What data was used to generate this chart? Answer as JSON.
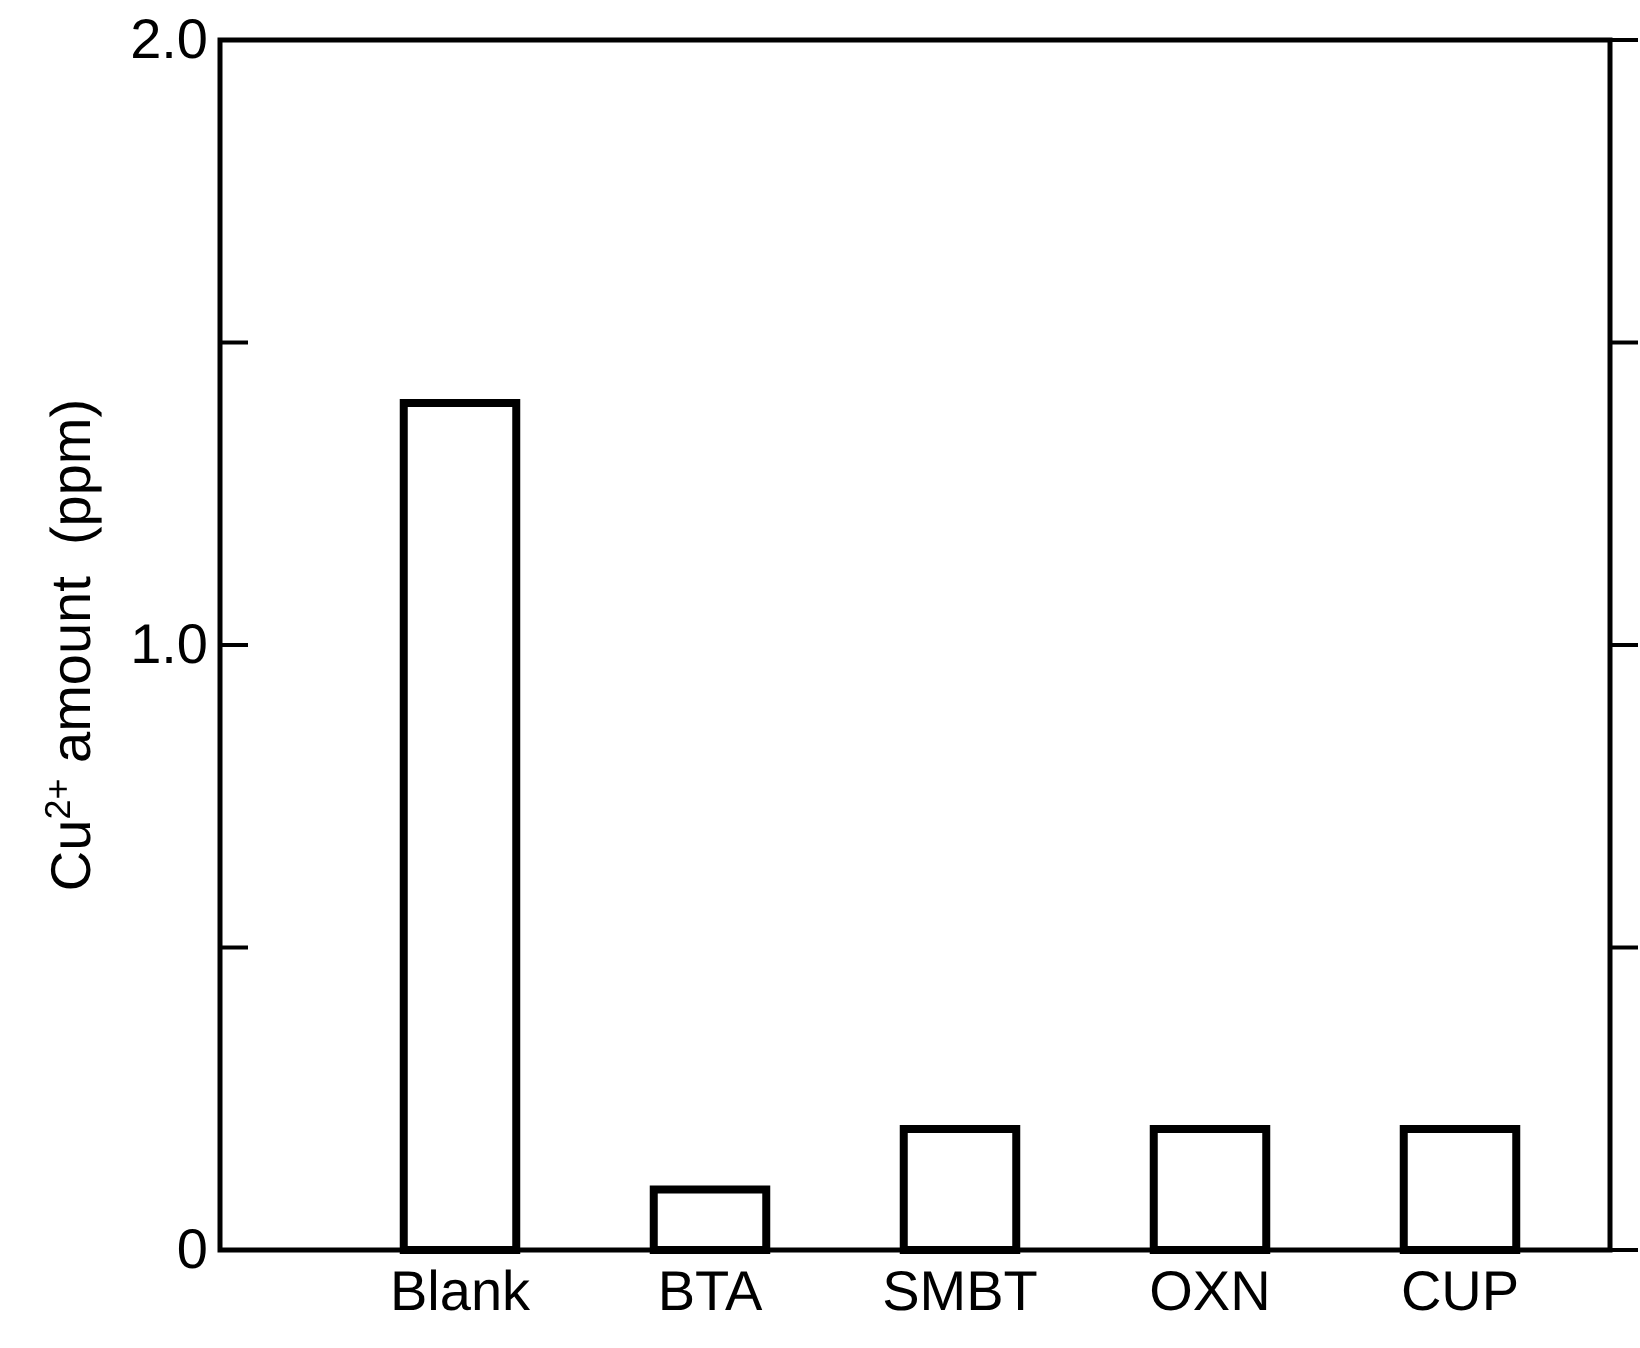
{
  "chart_data": {
    "type": "bar",
    "ylabel": "Cu$^{2+}$ amount  (ppm)",
    "categories": [
      "Blank",
      "BTA",
      "SMBT",
      "OXN",
      "CUP"
    ],
    "values": [
      1.4,
      0.1,
      0.2,
      0.2,
      0.2
    ],
    "color": "#000000",
    "ylim": [
      0,
      2.0
    ],
    "yticks": [
      0,
      {
        "value": 0.5,
        "label": null
      },
      {
        "value": 1.0,
        "label": "1.0"
      },
      {
        "value": 1.5,
        "label": null
      },
      {
        "value": 2.0,
        "label": "2.0"
      }
    ],
    "grid": false
  }
}
